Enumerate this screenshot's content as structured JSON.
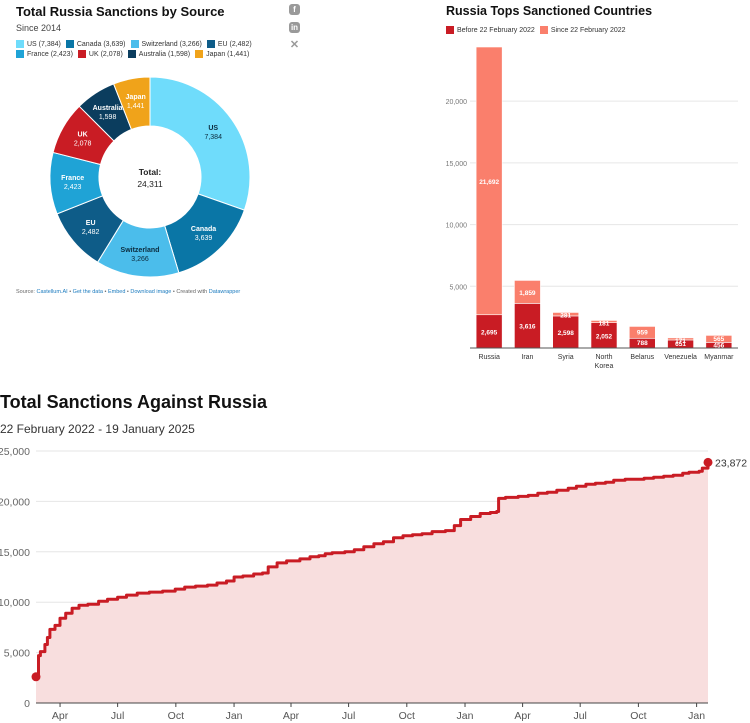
{
  "chart_data": [
    {
      "type": "pie",
      "title": "Total Russia Sanctions by Source",
      "subtitle": "Since 2014",
      "center_label": "Total:",
      "center_value": "24,311",
      "categories": [
        "US",
        "Canada",
        "Switzerland",
        "EU",
        "France",
        "UK",
        "Australia",
        "Japan"
      ],
      "values": [
        7384,
        3639,
        3266,
        2482,
        2423,
        2078,
        1598,
        1441
      ],
      "value_labels": [
        "7,384",
        "3,639",
        "3,266",
        "2,482",
        "2,423",
        "2,078",
        "1,598",
        "1,441"
      ],
      "legend_labels": [
        "US (7,384)",
        "Canada (3,639)",
        "Switzerland (3,266)",
        "EU (2,482)",
        "France (2,423)",
        "UK (2,078)",
        "Australia (1,598)",
        "Japan (1,441)"
      ],
      "colors": [
        "#6fdcfb",
        "#0a76a6",
        "#4bbdeb",
        "#0e5c88",
        "#1fa3d6",
        "#c91c24",
        "#0b3d5e",
        "#f0a31a"
      ],
      "legend_placement": "top",
      "source": {
        "prefix": "Source: ",
        "name": "Castellum.AI",
        "links": [
          "Get the data",
          "Embed",
          "Download image"
        ],
        "created_with_prefix": "Created with ",
        "created_with": "Datawrapper"
      },
      "share_icons": [
        "facebook-icon",
        "linkedin-icon",
        "x-icon"
      ]
    },
    {
      "type": "bar",
      "stacked": true,
      "title": "Russia Tops Sanctioned Countries",
      "categories": [
        "Russia",
        "Iran",
        "Syria",
        "North Korea",
        "Belarus",
        "Venezuela",
        "Myanmar"
      ],
      "category_lines": [
        [
          "Russia"
        ],
        [
          "Iran"
        ],
        [
          "Syria"
        ],
        [
          "North",
          "Korea"
        ],
        [
          "Belarus"
        ],
        [
          "Venezuela"
        ],
        [
          "Myanmar"
        ]
      ],
      "series": [
        {
          "name": "Before 22 February 2022",
          "color": "#c91c24",
          "values": [
            2695,
            3616,
            2598,
            2052,
            788,
            651,
            456
          ],
          "labels": [
            "2,695",
            "3,616",
            "2,598",
            "2,052",
            "788",
            "651",
            "456"
          ]
        },
        {
          "name": "Since 22 February 2022",
          "color": "#fa7f6c",
          "values": [
            21692,
            1859,
            281,
            181,
            959,
            171,
            565
          ],
          "labels": [
            "21,692",
            "1,859",
            "281",
            "181",
            "959",
            "171",
            "565"
          ]
        }
      ],
      "ylim": [
        0,
        24387
      ],
      "yticks": [
        0,
        5000,
        10000,
        15000,
        20000
      ],
      "ytick_labels": [
        "",
        "5,000",
        "10,000",
        "15,000",
        "20,000"
      ],
      "grid": true,
      "legend_placement": "top-left"
    },
    {
      "type": "area",
      "title": "Total Sanctions Against Russia",
      "subtitle": "22 February 2022 - 19 January 2025",
      "color": "#c91c24",
      "fill_color": "#f8dede",
      "x_range": [
        "2022-02-22",
        "2025-01-19"
      ],
      "ylim": [
        0,
        25000
      ],
      "yticks": [
        0,
        5000,
        10000,
        15000,
        20000,
        25000
      ],
      "ytick_labels": [
        "0",
        "5,000",
        "10,000",
        "15,000",
        "20,000",
        "25,000"
      ],
      "xtick_labels": [
        "Apr",
        "Jul",
        "Oct",
        "Jan",
        "Apr",
        "Jul",
        "Oct",
        "Jan",
        "Apr",
        "Jul",
        "Oct",
        "Jan"
      ],
      "xtick_dates": [
        "2022-04-01",
        "2022-07-01",
        "2022-10-01",
        "2023-01-01",
        "2023-04-01",
        "2023-07-01",
        "2023-10-01",
        "2024-01-01",
        "2024-04-01",
        "2024-07-01",
        "2024-10-01",
        "2025-01-01"
      ],
      "end_label": "23,872",
      "grid": true,
      "x": [
        "2022-02-22",
        "2022-02-26",
        "2022-03-01",
        "2022-03-08",
        "2022-03-12",
        "2022-03-16",
        "2022-03-24",
        "2022-04-01",
        "2022-04-10",
        "2022-04-20",
        "2022-05-01",
        "2022-05-15",
        "2022-06-01",
        "2022-06-15",
        "2022-07-01",
        "2022-07-15",
        "2022-08-01",
        "2022-08-20",
        "2022-09-10",
        "2022-09-30",
        "2022-10-15",
        "2022-11-01",
        "2022-11-20",
        "2022-12-05",
        "2022-12-20",
        "2023-01-01",
        "2023-01-15",
        "2023-02-01",
        "2023-02-15",
        "2023-02-24",
        "2023-03-10",
        "2023-03-25",
        "2023-04-15",
        "2023-05-01",
        "2023-05-15",
        "2023-05-25",
        "2023-06-05",
        "2023-06-25",
        "2023-07-10",
        "2023-07-25",
        "2023-08-10",
        "2023-08-25",
        "2023-09-10",
        "2023-09-25",
        "2023-10-10",
        "2023-10-25",
        "2023-11-10",
        "2023-12-01",
        "2023-12-15",
        "2023-12-25",
        "2024-01-10",
        "2024-01-25",
        "2024-02-10",
        "2024-02-20",
        "2024-02-23",
        "2024-03-05",
        "2024-03-25",
        "2024-04-10",
        "2024-04-25",
        "2024-05-10",
        "2024-05-25",
        "2024-06-12",
        "2024-06-25",
        "2024-07-10",
        "2024-07-25",
        "2024-08-10",
        "2024-08-23",
        "2024-09-10",
        "2024-09-25",
        "2024-10-10",
        "2024-10-25",
        "2024-11-10",
        "2024-11-25",
        "2024-12-10",
        "2024-12-20",
        "2025-01-05",
        "2025-01-10",
        "2025-01-19"
      ],
      "y": [
        2600,
        4700,
        5100,
        5800,
        6500,
        7300,
        7700,
        8400,
        8900,
        9400,
        9700,
        9800,
        10100,
        10300,
        10500,
        10700,
        10900,
        11000,
        11100,
        11300,
        11500,
        11600,
        11700,
        11900,
        12100,
        12500,
        12600,
        12800,
        12900,
        13500,
        13900,
        14100,
        14300,
        14500,
        14600,
        14800,
        14900,
        15000,
        15200,
        15500,
        15800,
        16000,
        16400,
        16600,
        16700,
        16800,
        17000,
        17100,
        17600,
        18200,
        18500,
        18800,
        18900,
        19000,
        20300,
        20400,
        20500,
        20600,
        20800,
        20900,
        21100,
        21300,
        21500,
        21700,
        21800,
        21900,
        22100,
        22200,
        22200,
        22300,
        22400,
        22500,
        22600,
        22800,
        22900,
        23000,
        23300,
        23872
      ]
    }
  ]
}
